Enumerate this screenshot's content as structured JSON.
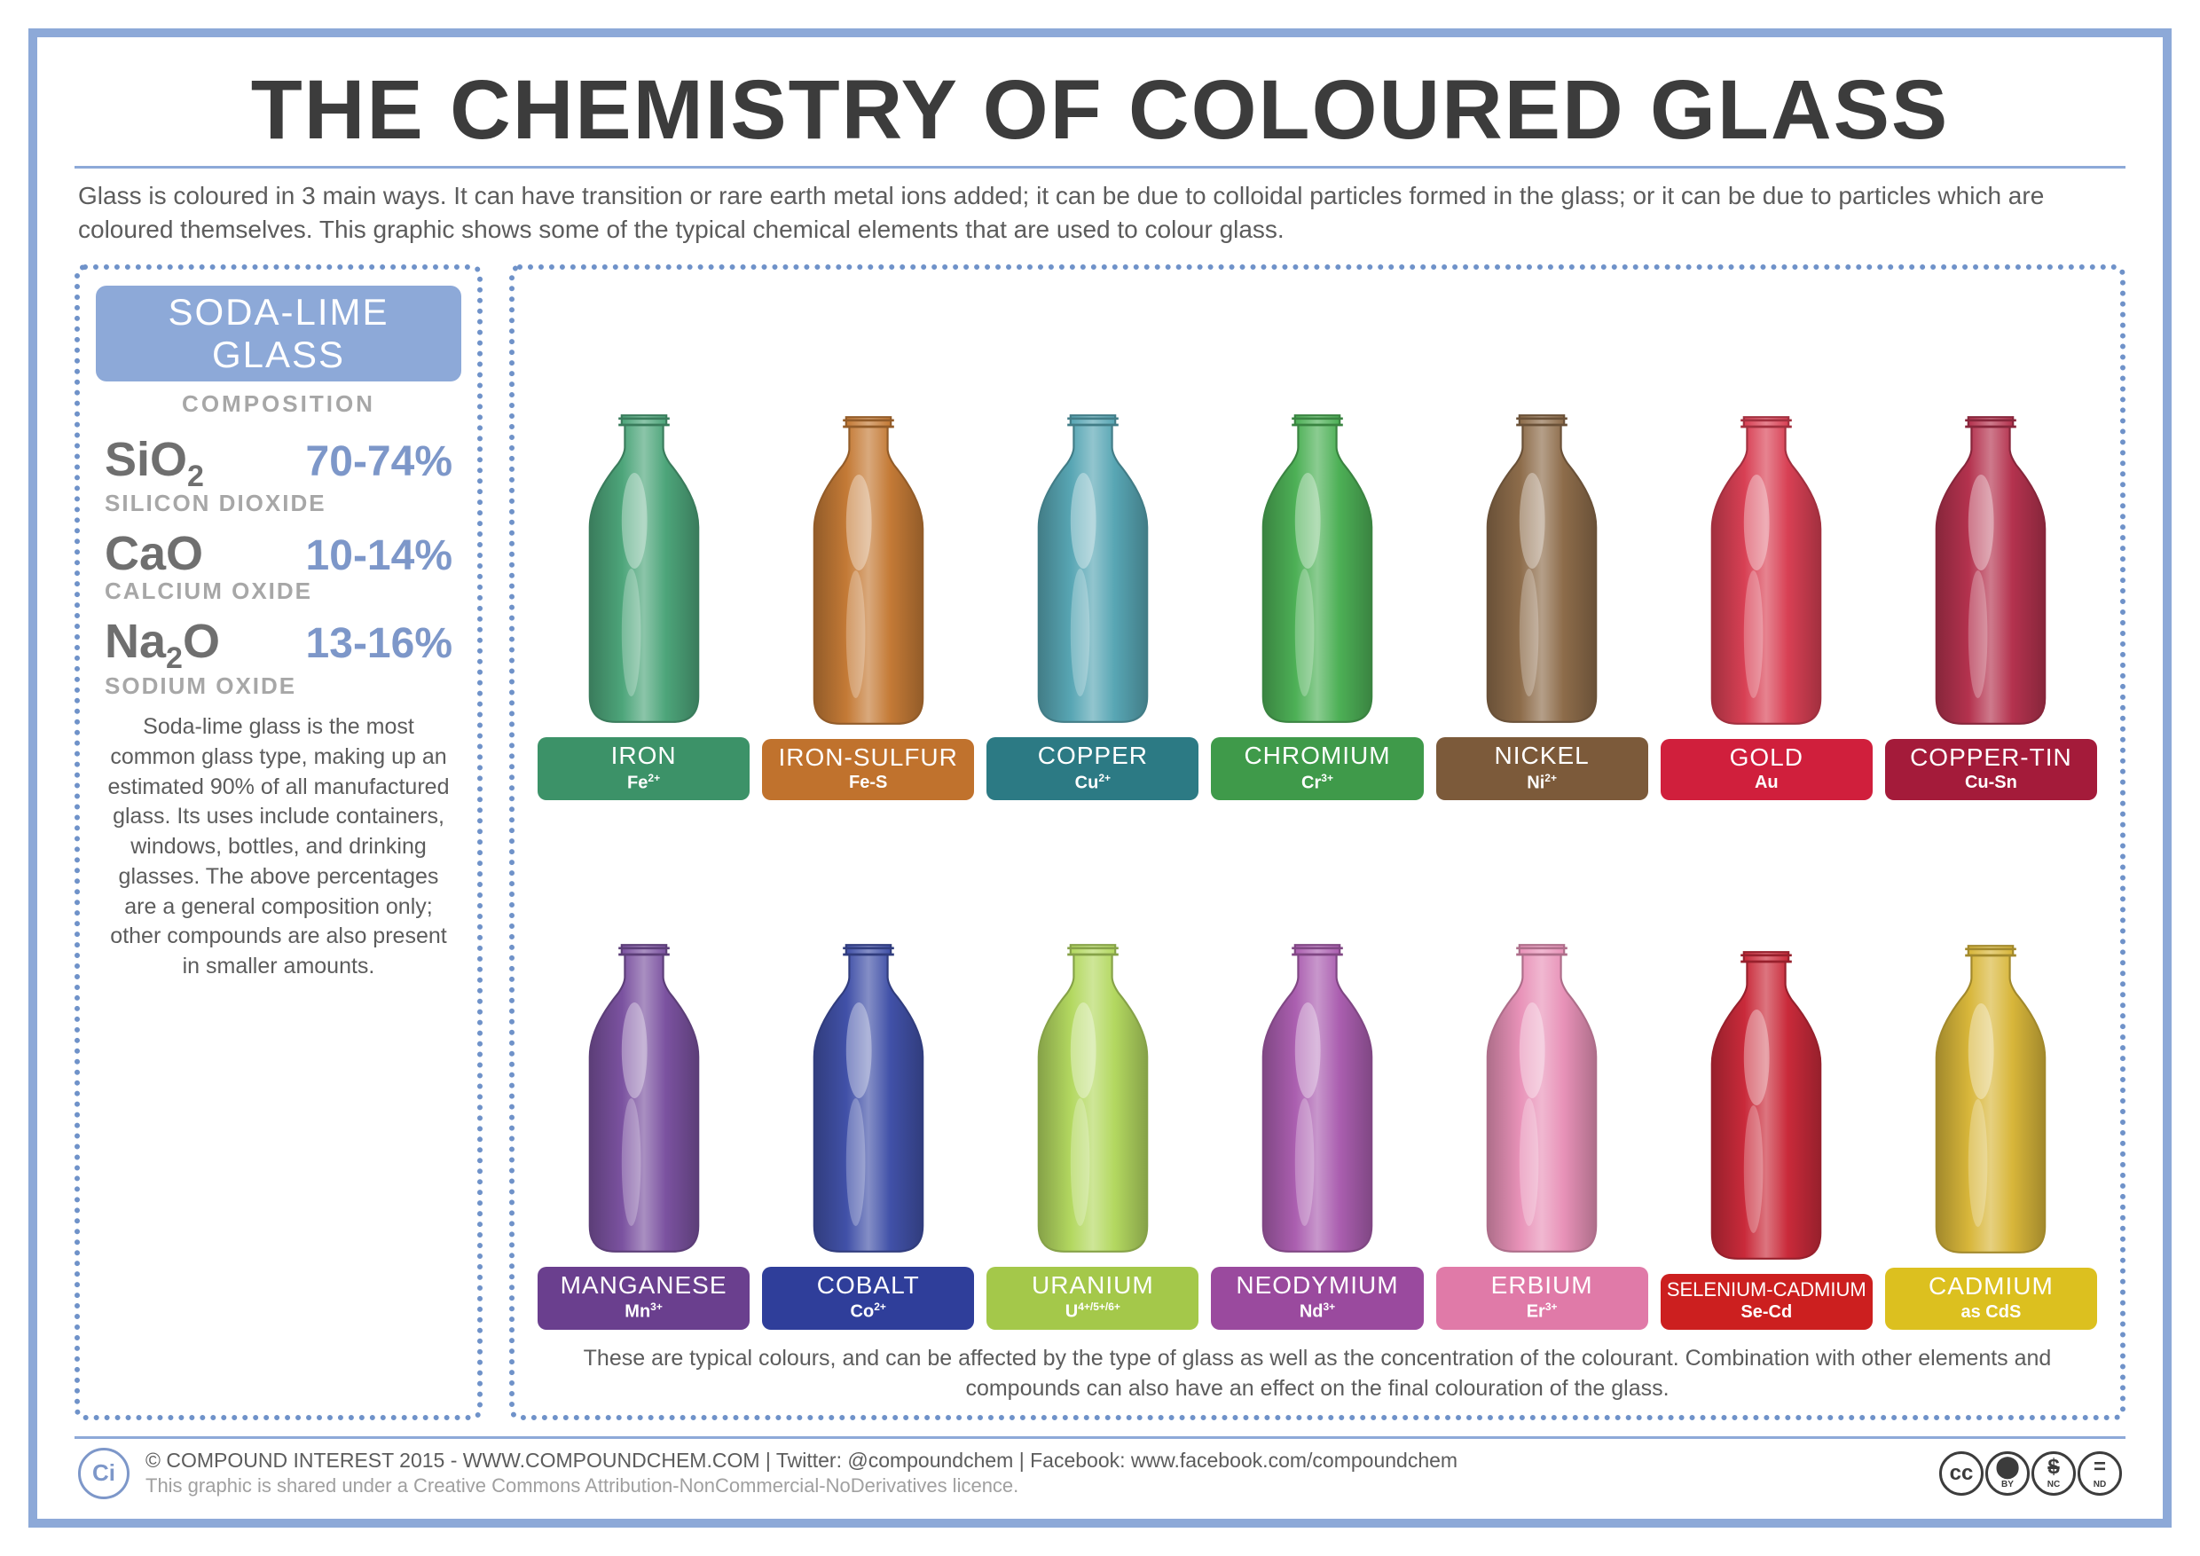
{
  "colors": {
    "frame_blue": "#8da9d8",
    "dotted_blue": "#6f92c9",
    "title_dark": "#3c3c3c",
    "subtitle_grey": "#5c5c5c",
    "side_heading_bg": "#8da9d8",
    "compound_formula": "#6f6f6f",
    "compound_pct": "#7d97c9",
    "compound_name": "#a7a7a7",
    "side_desc": "#5c5c5c",
    "footer_line1": "#5c5c5c",
    "footer_line2": "#a0a0a0",
    "ci_border": "#7d97c9",
    "ci_text": "#7d97c9"
  },
  "title": "THE CHEMISTRY OF COLOURED GLASS",
  "subtitle": "Glass is coloured in 3 main ways. It can have transition or rare earth metal ions added; it can be due to colloidal particles formed in the glass; or it can be due to particles which are coloured themselves. This graphic shows some of the typical chemical elements that are used to colour glass.",
  "side": {
    "heading": "SODA-LIME GLASS",
    "composition_label": "COMPOSITION",
    "compounds": [
      {
        "formula_html": "SiO<sub>2</sub>",
        "pct": "70-74%",
        "name": "SILICON DIOXIDE"
      },
      {
        "formula_html": "CaO",
        "pct": "10-14%",
        "name": "CALCIUM OXIDE"
      },
      {
        "formula_html": "Na<sub>2</sub>O",
        "pct": "13-16%",
        "name": "SODIUM OXIDE"
      }
    ],
    "desc": "Soda-lime glass is the most common glass type, making up an estimated 90% of all manufactured glass. Its uses include containers, windows, bottles, and drinking glasses. The above percentages are a general composition only; other compounds are also present in smaller amounts."
  },
  "bottles": {
    "items": [
      {
        "name": "IRON",
        "symbol_html": "Fe<sup>2+</sup>",
        "tag_color": "#3c9268",
        "bottle_color": "#4da57a"
      },
      {
        "name": "IRON-SULFUR",
        "symbol_html": "Fe-S",
        "tag_color": "#c0722d",
        "bottle_color": "#c47a36"
      },
      {
        "name": "COPPER",
        "symbol_html": "Cu<sup>2+</sup>",
        "tag_color": "#2c7a84",
        "bottle_color": "#58a6b4"
      },
      {
        "name": "CHROMIUM",
        "symbol_html": "Cr<sup>3+</sup>",
        "tag_color": "#3f9a4a",
        "bottle_color": "#4db056"
      },
      {
        "name": "NICKEL",
        "symbol_html": "Ni<sup>2+</sup>",
        "tag_color": "#7c5a3a",
        "bottle_color": "#8d6c4a"
      },
      {
        "name": "GOLD",
        "symbol_html": "Au",
        "tag_color": "#d01f3c",
        "bottle_color": "#d84054"
      },
      {
        "name": "COPPER-TIN",
        "symbol_html": "Cu-Sn",
        "tag_color": "#a41b3a",
        "bottle_color": "#b4324e"
      },
      {
        "name": "MANGANESE",
        "symbol_html": "Mn<sup>3+</sup>",
        "tag_color": "#6a3f8e",
        "bottle_color": "#7b52a0"
      },
      {
        "name": "COBALT",
        "symbol_html": "Co<sup>2+</sup>",
        "tag_color": "#2f3e9a",
        "bottle_color": "#4151a8"
      },
      {
        "name": "URANIUM",
        "symbol_html": "U<sup>4+/5+/6+</sup>",
        "tag_color": "#a4c84a",
        "bottle_color": "#b3d860"
      },
      {
        "name": "NEODYMIUM",
        "symbol_html": "Nd<sup>3+</sup>",
        "tag_color": "#9a4a9e",
        "bottle_color": "#ab5fb0"
      },
      {
        "name": "ERBIUM",
        "symbol_html": "Er<sup>3+</sup>",
        "tag_color": "#e07aa8",
        "bottle_color": "#e892b8"
      },
      {
        "name": "SELENIUM-CADMIUM",
        "small": true,
        "symbol_html": "Se-Cd",
        "tag_color": "#cc1f1f",
        "bottle_color": "#c92a3a"
      },
      {
        "name": "CADMIUM",
        "symbol_html": "as CdS",
        "tag_color": "#dcc01f",
        "bottle_color": "#d8b63a"
      }
    ],
    "note": "These are typical colours, and can be affected by the type of glass as well as the concentration of the colourant. Combination with other elements and compounds can also have an effect on the final colouration of the glass."
  },
  "footer": {
    "line1": "© COMPOUND INTEREST 2015 - WWW.COMPOUNDCHEM.COM | Twitter: @compoundchem | Facebook: www.facebook.com/compoundchem",
    "line2": "This graphic is shared under a Creative Commons Attribution-NonCommercial-NoDerivatives licence.",
    "logo_text": "Ci",
    "cc": [
      {
        "glyph": "cc",
        "sub": ""
      },
      {
        "glyph": "⬤",
        "sub": "BY"
      },
      {
        "glyph": "$",
        "sub": "NC",
        "strike": true
      },
      {
        "glyph": "=",
        "sub": "ND"
      }
    ]
  }
}
